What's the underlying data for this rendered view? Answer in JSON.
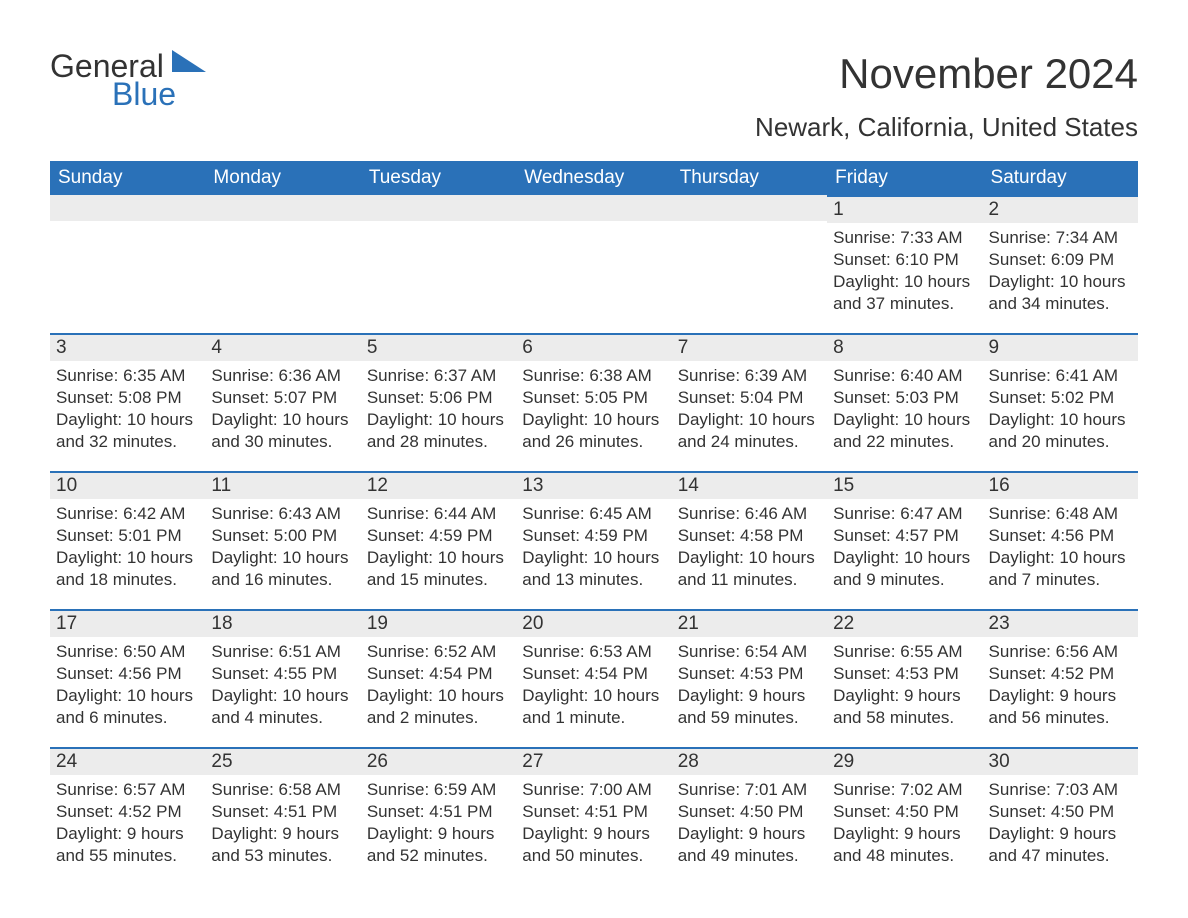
{
  "logo": {
    "word1": "General",
    "word2": "Blue",
    "tri_color": "#2a71b8"
  },
  "title": "November 2024",
  "location": "Newark, California, United States",
  "colors": {
    "header_bg": "#2a71b8",
    "header_text": "#ffffff",
    "daynum_bg": "#ececec",
    "daynum_border": "#2a71b8",
    "text": "#333333",
    "background": "#ffffff"
  },
  "typography": {
    "title_fontsize": 42,
    "location_fontsize": 26,
    "dayheader_fontsize": 19,
    "daynum_fontsize": 19,
    "body_fontsize": 17
  },
  "day_headers": [
    "Sunday",
    "Monday",
    "Tuesday",
    "Wednesday",
    "Thursday",
    "Friday",
    "Saturday"
  ],
  "weeks": [
    [
      null,
      null,
      null,
      null,
      null,
      {
        "num": "1",
        "sunrise": "Sunrise: 7:33 AM",
        "sunset": "Sunset: 6:10 PM",
        "daylight": "Daylight: 10 hours and 37 minutes."
      },
      {
        "num": "2",
        "sunrise": "Sunrise: 7:34 AM",
        "sunset": "Sunset: 6:09 PM",
        "daylight": "Daylight: 10 hours and 34 minutes."
      }
    ],
    [
      {
        "num": "3",
        "sunrise": "Sunrise: 6:35 AM",
        "sunset": "Sunset: 5:08 PM",
        "daylight": "Daylight: 10 hours and 32 minutes."
      },
      {
        "num": "4",
        "sunrise": "Sunrise: 6:36 AM",
        "sunset": "Sunset: 5:07 PM",
        "daylight": "Daylight: 10 hours and 30 minutes."
      },
      {
        "num": "5",
        "sunrise": "Sunrise: 6:37 AM",
        "sunset": "Sunset: 5:06 PM",
        "daylight": "Daylight: 10 hours and 28 minutes."
      },
      {
        "num": "6",
        "sunrise": "Sunrise: 6:38 AM",
        "sunset": "Sunset: 5:05 PM",
        "daylight": "Daylight: 10 hours and 26 minutes."
      },
      {
        "num": "7",
        "sunrise": "Sunrise: 6:39 AM",
        "sunset": "Sunset: 5:04 PM",
        "daylight": "Daylight: 10 hours and 24 minutes."
      },
      {
        "num": "8",
        "sunrise": "Sunrise: 6:40 AM",
        "sunset": "Sunset: 5:03 PM",
        "daylight": "Daylight: 10 hours and 22 minutes."
      },
      {
        "num": "9",
        "sunrise": "Sunrise: 6:41 AM",
        "sunset": "Sunset: 5:02 PM",
        "daylight": "Daylight: 10 hours and 20 minutes."
      }
    ],
    [
      {
        "num": "10",
        "sunrise": "Sunrise: 6:42 AM",
        "sunset": "Sunset: 5:01 PM",
        "daylight": "Daylight: 10 hours and 18 minutes."
      },
      {
        "num": "11",
        "sunrise": "Sunrise: 6:43 AM",
        "sunset": "Sunset: 5:00 PM",
        "daylight": "Daylight: 10 hours and 16 minutes."
      },
      {
        "num": "12",
        "sunrise": "Sunrise: 6:44 AM",
        "sunset": "Sunset: 4:59 PM",
        "daylight": "Daylight: 10 hours and 15 minutes."
      },
      {
        "num": "13",
        "sunrise": "Sunrise: 6:45 AM",
        "sunset": "Sunset: 4:59 PM",
        "daylight": "Daylight: 10 hours and 13 minutes."
      },
      {
        "num": "14",
        "sunrise": "Sunrise: 6:46 AM",
        "sunset": "Sunset: 4:58 PM",
        "daylight": "Daylight: 10 hours and 11 minutes."
      },
      {
        "num": "15",
        "sunrise": "Sunrise: 6:47 AM",
        "sunset": "Sunset: 4:57 PM",
        "daylight": "Daylight: 10 hours and 9 minutes."
      },
      {
        "num": "16",
        "sunrise": "Sunrise: 6:48 AM",
        "sunset": "Sunset: 4:56 PM",
        "daylight": "Daylight: 10 hours and 7 minutes."
      }
    ],
    [
      {
        "num": "17",
        "sunrise": "Sunrise: 6:50 AM",
        "sunset": "Sunset: 4:56 PM",
        "daylight": "Daylight: 10 hours and 6 minutes."
      },
      {
        "num": "18",
        "sunrise": "Sunrise: 6:51 AM",
        "sunset": "Sunset: 4:55 PM",
        "daylight": "Daylight: 10 hours and 4 minutes."
      },
      {
        "num": "19",
        "sunrise": "Sunrise: 6:52 AM",
        "sunset": "Sunset: 4:54 PM",
        "daylight": "Daylight: 10 hours and 2 minutes."
      },
      {
        "num": "20",
        "sunrise": "Sunrise: 6:53 AM",
        "sunset": "Sunset: 4:54 PM",
        "daylight": "Daylight: 10 hours and 1 minute."
      },
      {
        "num": "21",
        "sunrise": "Sunrise: 6:54 AM",
        "sunset": "Sunset: 4:53 PM",
        "daylight": "Daylight: 9 hours and 59 minutes."
      },
      {
        "num": "22",
        "sunrise": "Sunrise: 6:55 AM",
        "sunset": "Sunset: 4:53 PM",
        "daylight": "Daylight: 9 hours and 58 minutes."
      },
      {
        "num": "23",
        "sunrise": "Sunrise: 6:56 AM",
        "sunset": "Sunset: 4:52 PM",
        "daylight": "Daylight: 9 hours and 56 minutes."
      }
    ],
    [
      {
        "num": "24",
        "sunrise": "Sunrise: 6:57 AM",
        "sunset": "Sunset: 4:52 PM",
        "daylight": "Daylight: 9 hours and 55 minutes."
      },
      {
        "num": "25",
        "sunrise": "Sunrise: 6:58 AM",
        "sunset": "Sunset: 4:51 PM",
        "daylight": "Daylight: 9 hours and 53 minutes."
      },
      {
        "num": "26",
        "sunrise": "Sunrise: 6:59 AM",
        "sunset": "Sunset: 4:51 PM",
        "daylight": "Daylight: 9 hours and 52 minutes."
      },
      {
        "num": "27",
        "sunrise": "Sunrise: 7:00 AM",
        "sunset": "Sunset: 4:51 PM",
        "daylight": "Daylight: 9 hours and 50 minutes."
      },
      {
        "num": "28",
        "sunrise": "Sunrise: 7:01 AM",
        "sunset": "Sunset: 4:50 PM",
        "daylight": "Daylight: 9 hours and 49 minutes."
      },
      {
        "num": "29",
        "sunrise": "Sunrise: 7:02 AM",
        "sunset": "Sunset: 4:50 PM",
        "daylight": "Daylight: 9 hours and 48 minutes."
      },
      {
        "num": "30",
        "sunrise": "Sunrise: 7:03 AM",
        "sunset": "Sunset: 4:50 PM",
        "daylight": "Daylight: 9 hours and 47 minutes."
      }
    ]
  ]
}
